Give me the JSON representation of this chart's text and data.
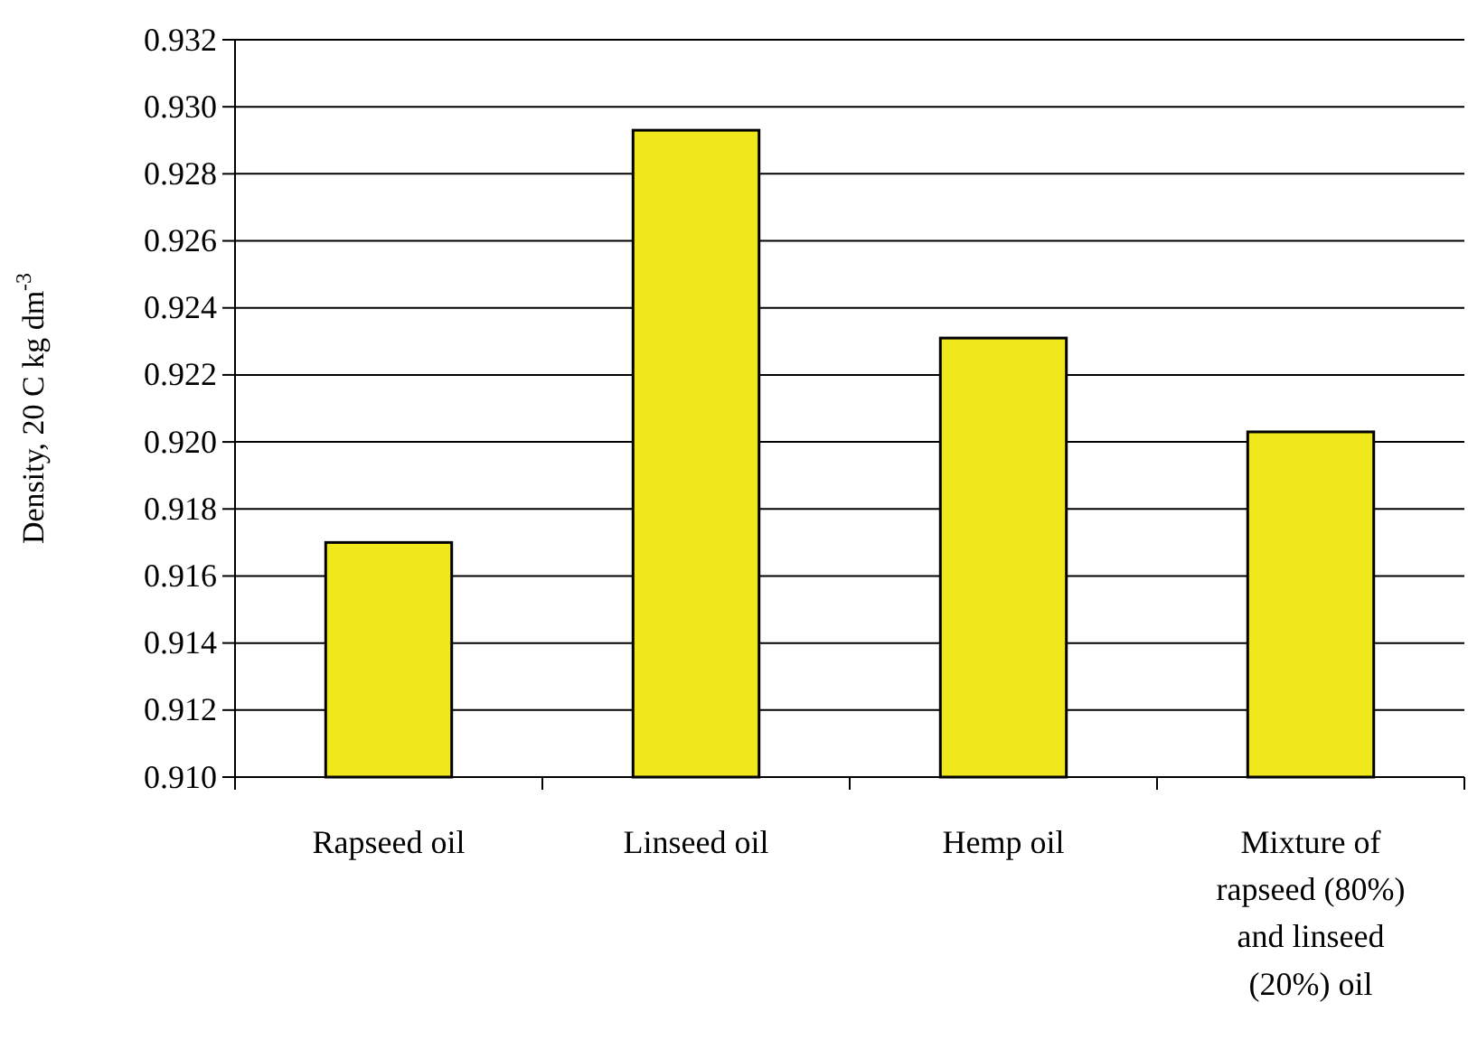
{
  "chart_data": {
    "type": "bar",
    "ylabel": "Density, 20 C kg dm$^{-3}$",
    "categories": [
      "Rapseed oil",
      "Linseed oil",
      "Hemp oil",
      "Mixture of rapseed (80%) and linseed (20%) oil"
    ],
    "values": [
      0.917,
      0.9293,
      0.9231,
      0.9203
    ],
    "color": "#f0e81c",
    "ylim": [
      0.91,
      0.932
    ],
    "yticks": [
      {
        "value": 0.91,
        "label": "0.910"
      },
      {
        "value": 0.912,
        "label": "0.912"
      },
      {
        "value": 0.914,
        "label": "0.914"
      },
      {
        "value": 0.916,
        "label": "0.916"
      },
      {
        "value": 0.918,
        "label": "0.918"
      },
      {
        "value": 0.92,
        "label": "0.920"
      },
      {
        "value": 0.922,
        "label": "0.922"
      },
      {
        "value": 0.924,
        "label": "0.924"
      },
      {
        "value": 0.926,
        "label": "0.926"
      },
      {
        "value": 0.928,
        "label": "0.928"
      },
      {
        "value": 0.93,
        "label": "0.930"
      },
      {
        "value": 0.932,
        "label": "0.932"
      }
    ],
    "grid": "y"
  }
}
